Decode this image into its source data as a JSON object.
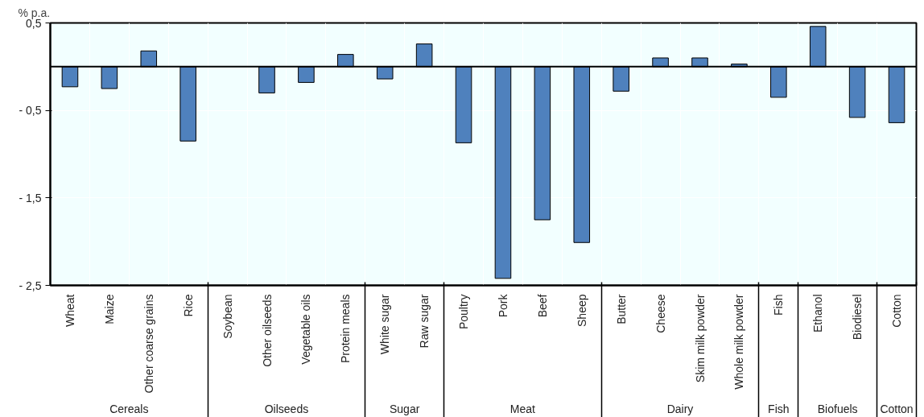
{
  "chart_data": {
    "type": "bar",
    "ylabel": "% p.a.",
    "categories": [
      [
        "Cereals",
        "Wheat"
      ],
      [
        null,
        "Maize"
      ],
      [
        null,
        "Other coarse grains"
      ],
      [
        null,
        "Rice"
      ],
      [
        "Oilseeds",
        "Soybean"
      ],
      [
        null,
        "Other oilseeds"
      ],
      [
        null,
        "Vegetable oils"
      ],
      [
        null,
        "Protein meals"
      ],
      [
        "Sugar",
        "White sugar"
      ],
      [
        null,
        "Raw sugar"
      ],
      [
        "Meat",
        "Poultry"
      ],
      [
        null,
        "Pork"
      ],
      [
        null,
        "Beef"
      ],
      [
        null,
        "Sheep"
      ],
      [
        "Dairy",
        "Butter"
      ],
      [
        null,
        "Cheese"
      ],
      [
        null,
        "Skim milk powder"
      ],
      [
        null,
        "Whole milk powder"
      ],
      [
        "Fish",
        "Fish"
      ],
      [
        "Biofuels",
        "Ethanol"
      ],
      [
        null,
        "Biodiesel"
      ],
      [
        "Cotton",
        "Cotton"
      ]
    ],
    "series": [
      {
        "color": "#4f81bd",
        "values": [
          -0.23,
          -0.25,
          0.18,
          -0.85,
          null,
          -0.3,
          -0.18,
          0.14,
          -0.14,
          0.26,
          -0.87,
          -2.42,
          -1.75,
          -2.01,
          -0.28,
          0.1,
          0.1,
          0.03,
          -0.35,
          0.46,
          -0.58,
          -0.64
        ]
      }
    ],
    "ylim": [
      -2.5,
      0.5
    ],
    "yticks": [
      {
        "value": 0.5,
        "label": "0,5"
      },
      {
        "value": -0.5,
        "label": "- 0,5"
      },
      {
        "value": -1.5,
        "label": "- 1,5"
      },
      {
        "value": -2.5,
        "label": "- 2,5"
      }
    ],
    "ref_lines": [
      {
        "axis": "y",
        "value": 0,
        "color": "#000000"
      }
    ],
    "grid": true
  }
}
